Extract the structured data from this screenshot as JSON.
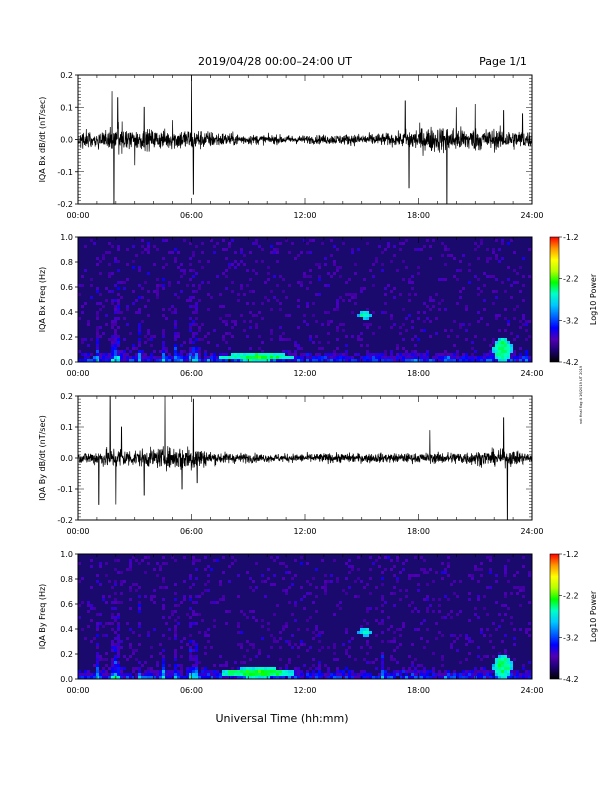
{
  "header": {
    "title": "2019/04/28  00:00–24:00 UT",
    "page": "Page 1/1"
  },
  "footer": {
    "xlabel": "Universal Time (hh:mm)",
    "side_note": "not final flag 4 16/2019 UT 2019"
  },
  "colors": {
    "trace": "#000000",
    "spectrogram_background": "#1a0a6e",
    "colormap": [
      "#000000",
      "#1c0070",
      "#5000b4",
      "#0000ff",
      "#0064ff",
      "#00c8ff",
      "#00ffc8",
      "#00ff00",
      "#b4ff00",
      "#ffff00",
      "#ff9600",
      "#ff0000"
    ]
  },
  "chart_data": [
    {
      "type": "line",
      "ylabel": "IQA Bx dB/dt (nT/sec)",
      "ylim": [
        -0.2,
        0.2
      ],
      "yticks": [
        "-0.2",
        "-0.1",
        "0.0",
        "0.1",
        "0.2"
      ],
      "xticks": [
        "00:00",
        "06:00",
        "12:00",
        "18:00",
        "24:00"
      ],
      "xlim": [
        0,
        24
      ],
      "x_unit": "hours UT",
      "noise_envelope": [
        [
          0,
          0.04
        ],
        [
          1.5,
          0.06
        ],
        [
          2,
          0.08
        ],
        [
          3,
          0.06
        ],
        [
          5,
          0.06
        ],
        [
          6,
          0.07
        ],
        [
          7,
          0.05
        ],
        [
          9,
          0.03
        ],
        [
          12,
          0.025
        ],
        [
          15,
          0.035
        ],
        [
          17,
          0.04
        ],
        [
          17.5,
          0.07
        ],
        [
          19,
          0.08
        ],
        [
          21,
          0.07
        ],
        [
          23,
          0.06
        ],
        [
          24,
          0.05
        ]
      ],
      "spikes": [
        [
          1.8,
          0.15
        ],
        [
          1.9,
          -0.2
        ],
        [
          2.1,
          0.13
        ],
        [
          3,
          -0.08
        ],
        [
          3.5,
          0.1
        ],
        [
          5,
          0.06
        ],
        [
          6,
          0.2
        ],
        [
          6.1,
          -0.17
        ],
        [
          17.3,
          0.12
        ],
        [
          17.5,
          -0.15
        ],
        [
          19.5,
          -0.2
        ],
        [
          20,
          0.1
        ],
        [
          21,
          0.11
        ],
        [
          22.5,
          0.09
        ],
        [
          23.5,
          0.08
        ]
      ]
    },
    {
      "type": "heatmap",
      "ylabel": "IQA Bx Freq (Hz)",
      "ylim": [
        0,
        1
      ],
      "yticks": [
        "0.0",
        "0.2",
        "0.4",
        "0.6",
        "0.8",
        "1.0"
      ],
      "xticks": [
        "00:00",
        "06:00",
        "12:00",
        "18:00",
        "24:00"
      ],
      "xlim": [
        0,
        24
      ],
      "colorbar_label": "Log10 Power",
      "colorbar_range": [
        -4.2,
        -1.2
      ],
      "colorbar_ticks": [
        "-1.2",
        "-2.2",
        "-3.2",
        "-4.2"
      ],
      "bright_columns": [
        1.0,
        1.9,
        2.2,
        3.3,
        4.5,
        5.2,
        6.0,
        6.2
      ],
      "features": [
        {
          "t": 15.2,
          "f": 0.38,
          "width": 0.7,
          "height": 0.06,
          "level": -2.9
        },
        {
          "t": 9.5,
          "f": 0.04,
          "width": 4.0,
          "height": 0.06,
          "level": -2.7
        },
        {
          "t": 22.5,
          "f": 0.1,
          "width": 1.0,
          "height": 0.2,
          "level": -2.8
        }
      ]
    },
    {
      "type": "line",
      "ylabel": "IQA By dB/dt (nT/sec)",
      "ylim": [
        -0.2,
        0.2
      ],
      "yticks": [
        "-0.2",
        "-0.1",
        "0.0",
        "0.1",
        "0.2"
      ],
      "xticks": [
        "00:00",
        "06:00",
        "12:00",
        "18:00",
        "24:00"
      ],
      "xlim": [
        0,
        24
      ],
      "x_unit": "hours UT",
      "noise_envelope": [
        [
          0,
          0.03
        ],
        [
          1,
          0.05
        ],
        [
          2,
          0.07
        ],
        [
          3,
          0.05
        ],
        [
          5,
          0.07
        ],
        [
          6,
          0.09
        ],
        [
          7,
          0.04
        ],
        [
          10,
          0.025
        ],
        [
          13,
          0.03
        ],
        [
          16,
          0.03
        ],
        [
          18,
          0.03
        ],
        [
          20,
          0.04
        ],
        [
          22,
          0.05
        ],
        [
          23,
          0.05
        ],
        [
          24,
          0.03
        ]
      ],
      "spikes": [
        [
          1.1,
          -0.15
        ],
        [
          1.7,
          0.2
        ],
        [
          2.0,
          -0.15
        ],
        [
          2.3,
          0.1
        ],
        [
          3.5,
          -0.12
        ],
        [
          4.6,
          0.2
        ],
        [
          5.5,
          -0.1
        ],
        [
          6.1,
          0.19
        ],
        [
          6.3,
          -0.08
        ],
        [
          22.5,
          0.13
        ],
        [
          22.7,
          -0.2
        ],
        [
          18.6,
          0.09
        ]
      ]
    },
    {
      "type": "heatmap",
      "ylabel": "IQA By Freq (Hz)",
      "ylim": [
        0,
        1
      ],
      "yticks": [
        "0.0",
        "0.2",
        "0.4",
        "0.6",
        "0.8",
        "1.0"
      ],
      "xticks": [
        "00:00",
        "06:00",
        "12:00",
        "18:00",
        "24:00"
      ],
      "xlim": [
        0,
        24
      ],
      "colorbar_label": "Log10 Power",
      "colorbar_range": [
        -4.2,
        -1.2
      ],
      "colorbar_ticks": [
        "-1.2",
        "-2.2",
        "-3.2",
        "-4.2"
      ],
      "bright_columns": [
        1.0,
        1.9,
        2.2,
        3.3,
        4.5,
        5.2,
        6.0,
        6.2,
        16.1
      ],
      "features": [
        {
          "t": 15.2,
          "f": 0.38,
          "width": 0.7,
          "height": 0.06,
          "level": -2.9
        },
        {
          "t": 9.5,
          "f": 0.05,
          "width": 4.0,
          "height": 0.08,
          "level": -2.7
        },
        {
          "t": 22.5,
          "f": 0.1,
          "width": 1.0,
          "height": 0.2,
          "level": -2.8
        }
      ]
    }
  ]
}
